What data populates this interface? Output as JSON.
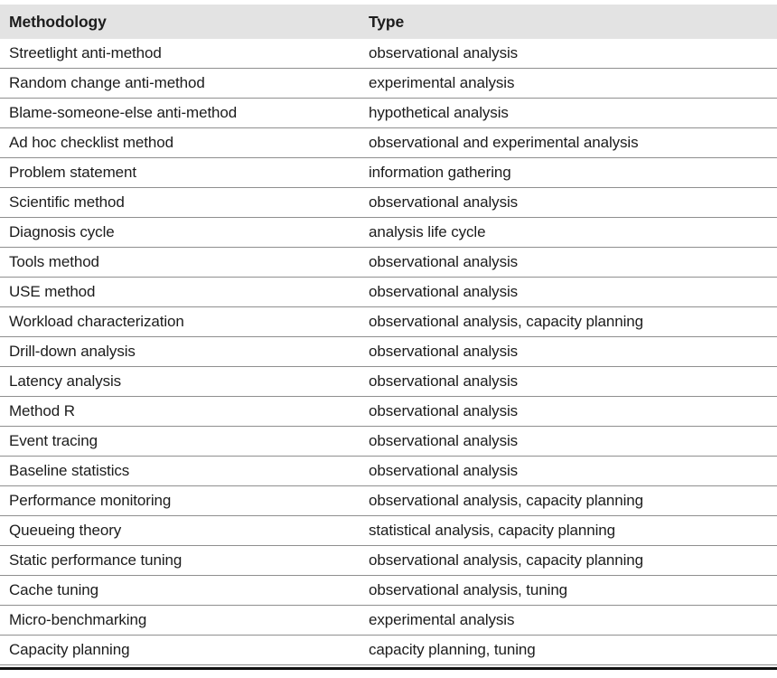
{
  "table": {
    "columns": [
      {
        "label": "Methodology"
      },
      {
        "label": "Type"
      }
    ],
    "rows": [
      {
        "methodology": "Streetlight anti-method",
        "type": "observational analysis"
      },
      {
        "methodology": "Random change anti-method",
        "type": "experimental analysis"
      },
      {
        "methodology": "Blame-someone-else anti-method",
        "type": "hypothetical analysis"
      },
      {
        "methodology": "Ad hoc checklist method",
        "type": "observational and experimental analysis"
      },
      {
        "methodology": "Problem statement",
        "type": "information gathering"
      },
      {
        "methodology": "Scientific method",
        "type": "observational analysis"
      },
      {
        "methodology": "Diagnosis cycle",
        "type": "analysis life cycle"
      },
      {
        "methodology": "Tools method",
        "type": "observational analysis"
      },
      {
        "methodology": "USE method",
        "type": "observational analysis"
      },
      {
        "methodology": "Workload characterization",
        "type": "observational analysis, capacity planning"
      },
      {
        "methodology": "Drill-down analysis",
        "type": "observational analysis"
      },
      {
        "methodology": "Latency analysis",
        "type": "observational analysis"
      },
      {
        "methodology": "Method R",
        "type": "observational analysis"
      },
      {
        "methodology": "Event tracing",
        "type": "observational analysis"
      },
      {
        "methodology": "Baseline statistics",
        "type": "observational analysis"
      },
      {
        "methodology": "Performance monitoring",
        "type": "observational analysis, capacity planning"
      },
      {
        "methodology": "Queueing theory",
        "type": "statistical analysis, capacity planning"
      },
      {
        "methodology": "Static performance tuning",
        "type": "observational analysis, capacity planning"
      },
      {
        "methodology": "Cache tuning",
        "type": "observational analysis, tuning"
      },
      {
        "methodology": "Micro-benchmarking",
        "type": "experimental analysis"
      },
      {
        "methodology": "Capacity planning",
        "type": "capacity planning, tuning"
      }
    ]
  },
  "colors": {
    "header_bg": "#e3e3e3",
    "row_divider": "#8f8f8f",
    "text": "#1c1c1c",
    "bottom_rule": "#111111",
    "page_bg": "#ffffff"
  }
}
